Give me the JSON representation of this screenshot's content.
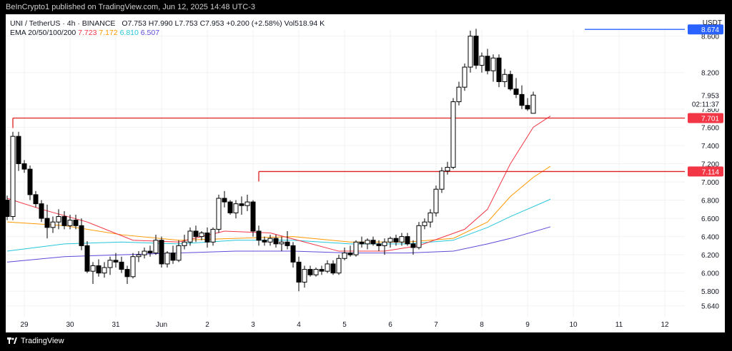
{
  "header": {
    "publisher_line": "BeInCrypto1 published on TradingView.com, Jun 12, 2025 14:48 UTC-3",
    "symbol": "UNI / TetherUS · 4h · BINANCE",
    "ohlc": {
      "open_label": "O",
      "open": "7.753",
      "high_label": "H",
      "high": "7.990",
      "low_label": "L",
      "low": "7.753",
      "close_label": "C",
      "close": "7.953",
      "change": "+0.200 (+2.58%)",
      "vol_label": "Vol",
      "vol": "518.94 K"
    },
    "ema_label": "EMA 20/50/100/200",
    "ema_values": [
      "7.723",
      "7.172",
      "6.810",
      "6.507"
    ],
    "currency": "USDT"
  },
  "colors": {
    "up": "#ffffff",
    "down": "#000000",
    "wick": "#000000",
    "ema20": "#f23645",
    "ema50": "#ff9800",
    "ema100": "#26c6da",
    "ema200": "#5b4ad8",
    "level_line": "#e02020",
    "blue_line": "#2962ff",
    "price_tag": "#f23645",
    "blue_tag": "#2962ff",
    "grid": "#f2f2f2"
  },
  "footer": {
    "brand": "TradingView",
    "logo_icon": "tradingview-logo-icon"
  },
  "chart_data": {
    "type": "candlestick",
    "ylim": [
      5.52,
      8.84
    ],
    "yticks": [
      5.64,
      5.8,
      6.0,
      6.2,
      6.4,
      6.6,
      6.8,
      7.0,
      7.2,
      7.4,
      7.6,
      7.8,
      8.2,
      8.6
    ],
    "ytick_labels": [
      "5.640",
      "5.800",
      "6.000",
      "6.200",
      "6.400",
      "6.600",
      "6.800",
      "7.000",
      "7.200",
      "7.400",
      "7.600",
      "7.800",
      "8.200",
      "8.600"
    ],
    "xticks": [
      {
        "label": "29",
        "bar": 3
      },
      {
        "label": "30",
        "bar": 11
      },
      {
        "label": "31",
        "bar": 19
      },
      {
        "label": "Jun",
        "bar": 27
      },
      {
        "label": "2",
        "bar": 35
      },
      {
        "label": "3",
        "bar": 43
      },
      {
        "label": "4",
        "bar": 51
      },
      {
        "label": "5",
        "bar": 59
      },
      {
        "label": "6",
        "bar": 67
      },
      {
        "label": "7",
        "bar": 75
      },
      {
        "label": "8",
        "bar": 83
      },
      {
        "label": "9",
        "bar": 91
      },
      {
        "label": "10",
        "bar": 99
      },
      {
        "label": "11",
        "bar": 107
      },
      {
        "label": "12",
        "bar": 115
      }
    ],
    "candles": [
      [
        6.8,
        6.85,
        6.58,
        6.62
      ],
      [
        6.62,
        7.55,
        6.58,
        7.5
      ],
      [
        7.5,
        7.55,
        7.12,
        7.2
      ],
      [
        7.2,
        7.24,
        7.1,
        7.14
      ],
      [
        7.14,
        7.18,
        6.8,
        6.86
      ],
      [
        6.86,
        6.9,
        6.72,
        6.76
      ],
      [
        6.76,
        6.8,
        6.56,
        6.6
      ],
      [
        6.6,
        6.75,
        6.38,
        6.5
      ],
      [
        6.5,
        6.62,
        6.44,
        6.56
      ],
      [
        6.56,
        6.7,
        6.48,
        6.62
      ],
      [
        6.62,
        6.68,
        6.48,
        6.52
      ],
      [
        6.52,
        6.64,
        6.48,
        6.58
      ],
      [
        6.58,
        6.64,
        6.48,
        6.52
      ],
      [
        6.52,
        6.6,
        6.25,
        6.3
      ],
      [
        6.3,
        6.35,
        6.0,
        6.02
      ],
      [
        6.02,
        6.12,
        5.88,
        6.08
      ],
      [
        6.08,
        6.15,
        5.96,
        6.0
      ],
      [
        6.0,
        6.12,
        5.95,
        6.06
      ],
      [
        6.06,
        6.18,
        5.98,
        6.14
      ],
      [
        6.14,
        6.22,
        6.06,
        6.12
      ],
      [
        6.12,
        6.18,
        6.0,
        6.04
      ],
      [
        6.04,
        6.08,
        5.88,
        5.96
      ],
      [
        5.96,
        6.22,
        5.94,
        6.18
      ],
      [
        6.18,
        6.24,
        6.12,
        6.2
      ],
      [
        6.2,
        6.28,
        6.16,
        6.24
      ],
      [
        6.24,
        6.3,
        6.18,
        6.22
      ],
      [
        6.22,
        6.42,
        6.2,
        6.36
      ],
      [
        6.36,
        6.4,
        6.06,
        6.1
      ],
      [
        6.1,
        6.24,
        6.06,
        6.22
      ],
      [
        6.22,
        6.3,
        6.1,
        6.14
      ],
      [
        6.14,
        6.36,
        6.12,
        6.3
      ],
      [
        6.3,
        6.42,
        6.26,
        6.34
      ],
      [
        6.34,
        6.5,
        6.3,
        6.46
      ],
      [
        6.46,
        6.52,
        6.34,
        6.4
      ],
      [
        6.4,
        6.46,
        6.36,
        6.44
      ],
      [
        6.44,
        6.5,
        6.28,
        6.34
      ],
      [
        6.34,
        6.5,
        6.3,
        6.48
      ],
      [
        6.48,
        6.86,
        6.44,
        6.82
      ],
      [
        6.82,
        6.9,
        6.72,
        6.78
      ],
      [
        6.78,
        6.8,
        6.64,
        6.66
      ],
      [
        6.66,
        6.8,
        6.6,
        6.76
      ],
      [
        6.76,
        6.84,
        6.64,
        6.74
      ],
      [
        6.74,
        6.86,
        6.68,
        6.78
      ],
      [
        6.78,
        6.8,
        6.4,
        6.46
      ],
      [
        6.46,
        6.52,
        6.3,
        6.36
      ],
      [
        6.36,
        6.4,
        6.3,
        6.34
      ],
      [
        6.34,
        6.42,
        6.3,
        6.38
      ],
      [
        6.38,
        6.42,
        6.28,
        6.32
      ],
      [
        6.32,
        6.4,
        6.24,
        6.34
      ],
      [
        6.34,
        6.46,
        6.26,
        6.3
      ],
      [
        6.3,
        6.34,
        6.06,
        6.12
      ],
      [
        6.12,
        6.18,
        5.8,
        5.9
      ],
      [
        5.9,
        6.08,
        5.84,
        6.04
      ],
      [
        6.04,
        6.08,
        5.96,
        5.98
      ],
      [
        5.98,
        6.06,
        5.96,
        6.04
      ],
      [
        6.04,
        6.08,
        5.98,
        6.02
      ],
      [
        6.02,
        6.14,
        6.0,
        6.1
      ],
      [
        6.1,
        6.14,
        5.98,
        6.0
      ],
      [
        6.0,
        6.2,
        5.98,
        6.16
      ],
      [
        6.16,
        6.28,
        6.14,
        6.22
      ],
      [
        6.22,
        6.3,
        6.18,
        6.2
      ],
      [
        6.2,
        6.36,
        6.18,
        6.34
      ],
      [
        6.34,
        6.4,
        6.28,
        6.32
      ],
      [
        6.32,
        6.38,
        6.26,
        6.36
      ],
      [
        6.36,
        6.4,
        6.3,
        6.32
      ],
      [
        6.32,
        6.36,
        6.24,
        6.3
      ],
      [
        6.3,
        6.38,
        6.2,
        6.34
      ],
      [
        6.34,
        6.4,
        6.28,
        6.38
      ],
      [
        6.38,
        6.42,
        6.3,
        6.34
      ],
      [
        6.34,
        6.44,
        6.3,
        6.4
      ],
      [
        6.4,
        6.44,
        6.3,
        6.32
      ],
      [
        6.32,
        6.36,
        6.2,
        6.28
      ],
      [
        6.28,
        6.56,
        6.26,
        6.52
      ],
      [
        6.52,
        6.6,
        6.48,
        6.56
      ],
      [
        6.56,
        6.7,
        6.5,
        6.66
      ],
      [
        6.66,
        6.96,
        6.62,
        6.92
      ],
      [
        6.92,
        7.16,
        6.88,
        7.12
      ],
      [
        7.12,
        7.22,
        7.08,
        7.16
      ],
      [
        7.16,
        7.92,
        7.14,
        7.88
      ],
      [
        7.88,
        8.1,
        7.84,
        8.04
      ],
      [
        8.04,
        8.3,
        8.0,
        8.26
      ],
      [
        8.26,
        8.66,
        8.2,
        8.6
      ],
      [
        8.6,
        8.68,
        8.24,
        8.28
      ],
      [
        8.28,
        8.42,
        8.2,
        8.38
      ],
      [
        8.38,
        8.46,
        8.18,
        8.22
      ],
      [
        8.22,
        8.4,
        8.1,
        8.36
      ],
      [
        8.36,
        8.4,
        8.04,
        8.1
      ],
      [
        8.1,
        8.24,
        8.04,
        8.18
      ],
      [
        8.18,
        8.22,
        8.0,
        8.02
      ],
      [
        8.02,
        8.14,
        7.92,
        7.96
      ],
      [
        7.96,
        8.06,
        7.8,
        7.84
      ],
      [
        7.84,
        7.92,
        7.78,
        7.8
      ],
      [
        7.753,
        7.99,
        7.753,
        7.953
      ]
    ],
    "ema20": [
      [
        0,
        6.82
      ],
      [
        6,
        6.7
      ],
      [
        14,
        6.56
      ],
      [
        22,
        6.36
      ],
      [
        30,
        6.34
      ],
      [
        38,
        6.46
      ],
      [
        46,
        6.44
      ],
      [
        52,
        6.34
      ],
      [
        58,
        6.24
      ],
      [
        66,
        6.24
      ],
      [
        72,
        6.3
      ],
      [
        80,
        6.48
      ],
      [
        84,
        6.7
      ],
      [
        88,
        7.2
      ],
      [
        92,
        7.6
      ],
      [
        95,
        7.723
      ]
    ],
    "ema50": [
      [
        0,
        6.56
      ],
      [
        10,
        6.52
      ],
      [
        20,
        6.42
      ],
      [
        30,
        6.36
      ],
      [
        40,
        6.38
      ],
      [
        50,
        6.4
      ],
      [
        60,
        6.34
      ],
      [
        70,
        6.34
      ],
      [
        78,
        6.38
      ],
      [
        84,
        6.56
      ],
      [
        88,
        6.84
      ],
      [
        92,
        7.05
      ],
      [
        95,
        7.172
      ]
    ],
    "ema100": [
      [
        0,
        6.24
      ],
      [
        10,
        6.32
      ],
      [
        20,
        6.34
      ],
      [
        30,
        6.32
      ],
      [
        40,
        6.36
      ],
      [
        50,
        6.36
      ],
      [
        60,
        6.32
      ],
      [
        70,
        6.32
      ],
      [
        78,
        6.36
      ],
      [
        84,
        6.5
      ],
      [
        88,
        6.62
      ],
      [
        95,
        6.81
      ]
    ],
    "ema200": [
      [
        0,
        6.12
      ],
      [
        10,
        6.18
      ],
      [
        20,
        6.2
      ],
      [
        30,
        6.22
      ],
      [
        40,
        6.24
      ],
      [
        50,
        6.24
      ],
      [
        60,
        6.22
      ],
      [
        70,
        6.22
      ],
      [
        78,
        6.24
      ],
      [
        84,
        6.32
      ],
      [
        88,
        6.38
      ],
      [
        95,
        6.507
      ]
    ],
    "level_lines": [
      {
        "start_bar": 1,
        "price": 7.701,
        "label": "7.701"
      },
      {
        "start_bar": 44,
        "price": 7.114,
        "label": "7.114"
      }
    ],
    "blue_line": {
      "start_bar": 101,
      "price": 8.674,
      "label": "8.674"
    },
    "last_price": {
      "price": "7.953",
      "countdown": "02:11:37"
    }
  }
}
